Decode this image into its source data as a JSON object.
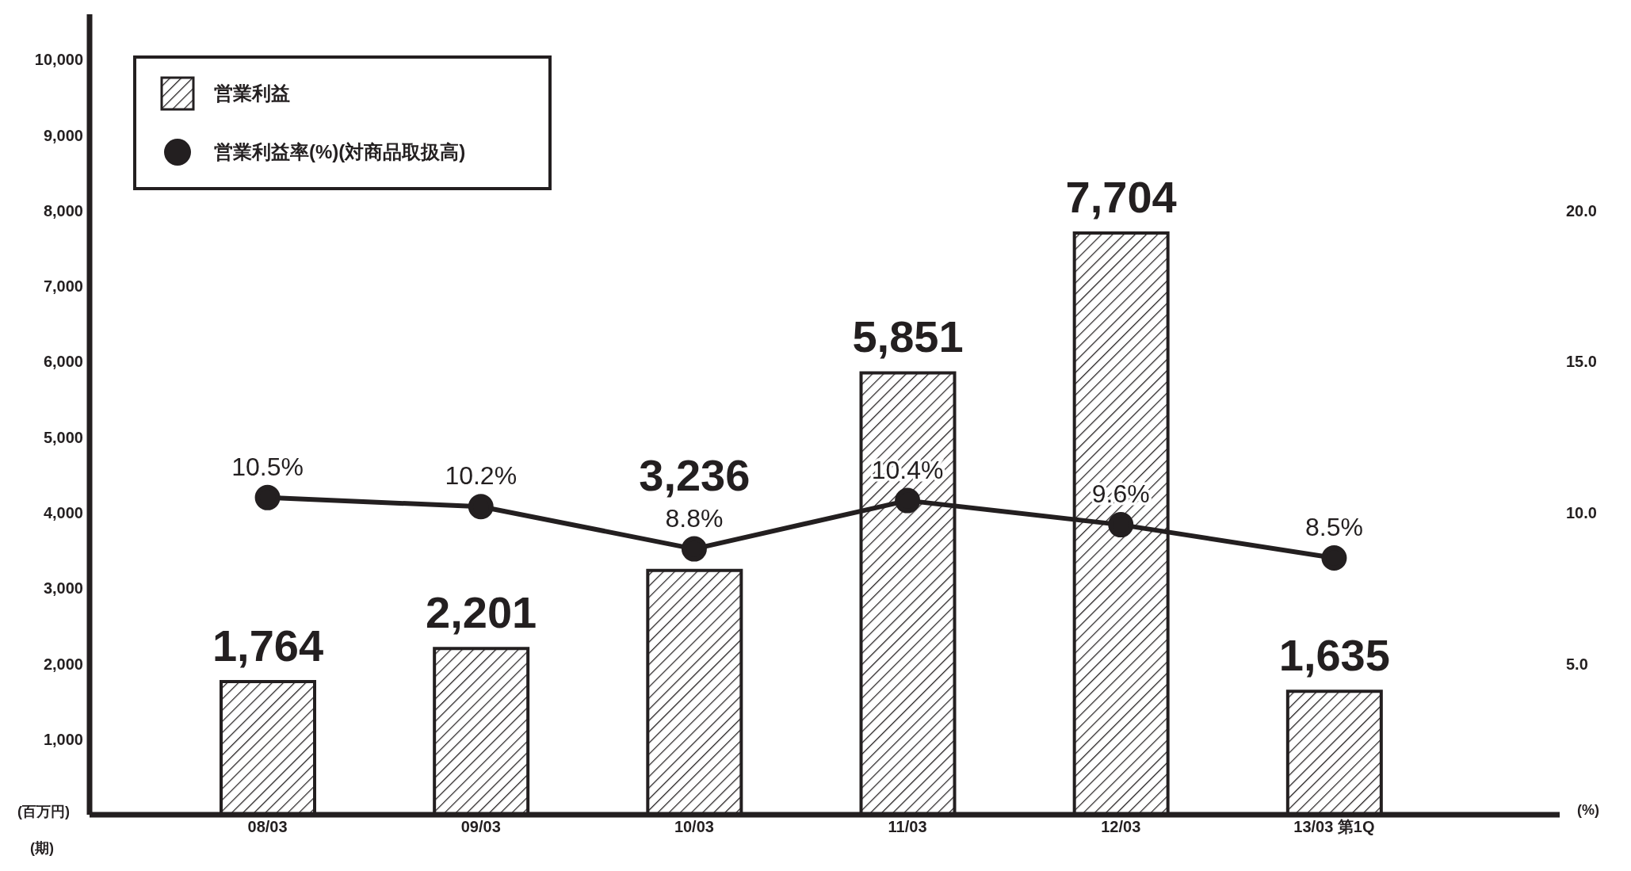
{
  "chart_data": {
    "type": "bar",
    "annotations": [
      "(百万円)",
      "(%)",
      "(期)"
    ],
    "categories": [
      "08/03",
      "09/03",
      "10/03",
      "11/03",
      "12/03",
      "13/03 第1Q"
    ],
    "series": [
      {
        "name": "営業利益",
        "color": "#231f20",
        "values": [
          1764,
          2201,
          3236,
          5851,
          7704,
          1635
        ],
        "value_labels": [
          "1,764",
          "2,201",
          "3,236",
          "5,851",
          "7,704",
          "1,635"
        ]
      },
      {
        "name": "営業利益率(%)(対商品取扱高)",
        "type": "line",
        "axis": "y2",
        "color": "#231f20",
        "values": [
          10.5,
          10.2,
          8.8,
          10.4,
          9.6,
          8.5
        ],
        "value_labels": [
          "10.5%",
          "10.2%",
          "8.8%",
          "10.4%",
          "9.6%",
          "8.5%"
        ]
      }
    ],
    "ylim": [
      0,
      10600
    ],
    "yticks": [
      {
        "value": 1000,
        "label": "1,000"
      },
      {
        "value": 2000,
        "label": "2,000"
      },
      {
        "value": 3000,
        "label": "3,000"
      },
      {
        "value": 4000,
        "label": "4,000"
      },
      {
        "value": 5000,
        "label": "5,000"
      },
      {
        "value": 6000,
        "label": "6,000"
      },
      {
        "value": 7000,
        "label": "7,000"
      },
      {
        "value": 8000,
        "label": "8,000"
      },
      {
        "value": 9000,
        "label": "9,000"
      },
      {
        "value": 10000,
        "label": "10,000"
      }
    ],
    "y2lim": [
      0,
      26.5
    ],
    "y2ticks": [
      {
        "value": 5,
        "label": "5.0"
      },
      {
        "value": 10,
        "label": "10.0"
      },
      {
        "value": 15,
        "label": "15.0"
      },
      {
        "value": 20,
        "label": "20.0"
      }
    ],
    "marker": "circle",
    "line_style": "solid",
    "legend": "top left"
  }
}
